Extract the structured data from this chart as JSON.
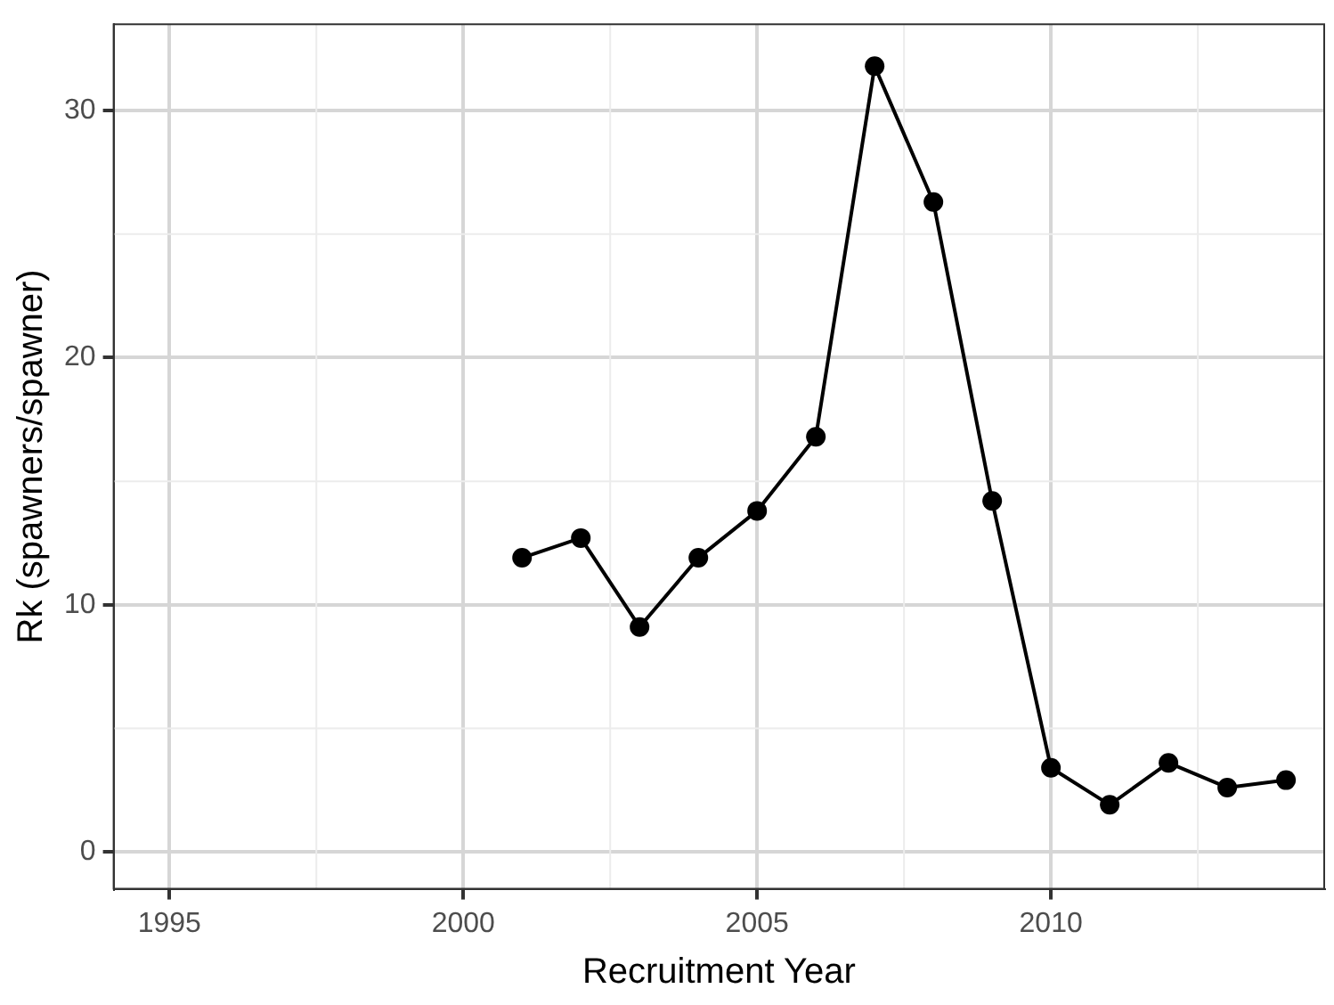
{
  "chart_data": {
    "type": "line",
    "xlabel": "Recruitment Year",
    "ylabel": "Rk (spawners/spawner)",
    "x": [
      2001,
      2002,
      2003,
      2004,
      2005,
      2006,
      2007,
      2008,
      2009,
      2010,
      2011,
      2012,
      2013,
      2014
    ],
    "series": [
      {
        "color": "#000000",
        "values": [
          11.9,
          12.7,
          9.1,
          11.9,
          13.8,
          16.8,
          31.8,
          26.3,
          14.2,
          3.4,
          1.9,
          3.6,
          2.6,
          2.9
        ]
      }
    ],
    "xlim": [
      1994.05,
      2014.65
    ],
    "xticks": [
      1995,
      2000,
      2005,
      2010
    ],
    "ylim": [
      -1.5,
      33.5
    ],
    "yticks": [
      0,
      10,
      20,
      30
    ],
    "grid": true,
    "marker": "circle",
    "line_style": "solid",
    "legend": false
  }
}
